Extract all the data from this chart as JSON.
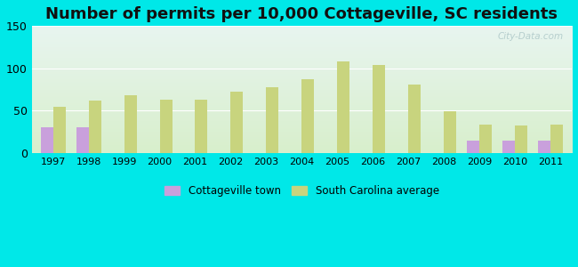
{
  "title": "Number of permits per 10,000 Cottageville, SC residents",
  "years": [
    1997,
    1998,
    1999,
    2000,
    2001,
    2002,
    2003,
    2004,
    2005,
    2006,
    2007,
    2008,
    2009,
    2010,
    2011
  ],
  "cottageville": [
    30,
    30,
    0,
    0,
    0,
    0,
    0,
    0,
    0,
    0,
    0,
    0,
    15,
    15,
    15
  ],
  "sc_average": [
    55,
    62,
    68,
    63,
    63,
    72,
    78,
    87,
    108,
    104,
    81,
    49,
    34,
    33,
    34
  ],
  "ylim": [
    0,
    150
  ],
  "yticks": [
    0,
    50,
    100,
    150
  ],
  "bar_width": 0.35,
  "cottageville_color": "#c9a0dc",
  "sc_avg_color": "#c8d47e",
  "bg_outer": "#00e8e8",
  "bg_gradient_top": "#e8f5f0",
  "bg_gradient_bottom": "#d8efcc",
  "title_fontsize": 13,
  "watermark": "City-Data.com",
  "legend_cottageville": "Cottageville town",
  "legend_sc": "South Carolina average",
  "grid_color": "#ffffff",
  "tick_label_size": 8
}
